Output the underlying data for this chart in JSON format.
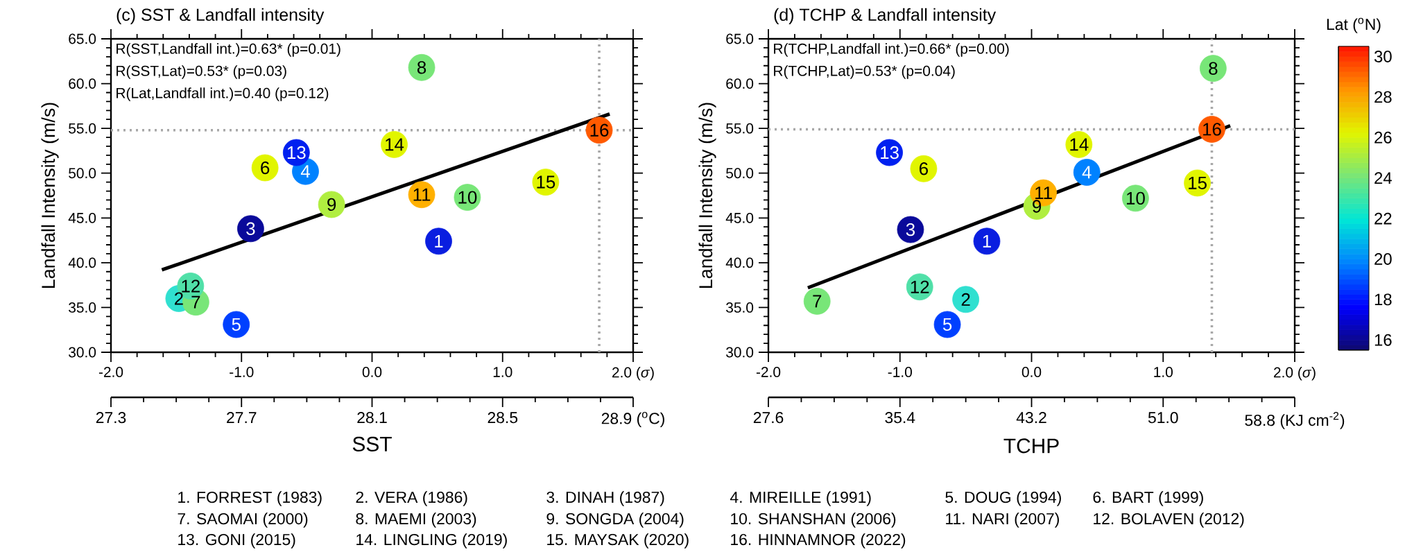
{
  "chart_data": [
    {
      "type": "scatter",
      "title": "(c) SST & Landfall intensity",
      "ylabel": "Landfall Intensity (m/s)",
      "x2label": "SST",
      "xlim": [
        -2,
        2
      ],
      "xticks": [
        {
          "value": -2,
          "label": "-2.0"
        },
        {
          "value": -1,
          "label": "-1.0"
        },
        {
          "value": 0,
          "label": "0.0"
        },
        {
          "value": 1,
          "label": "1.0"
        },
        {
          "value": 2,
          "label": "2.0 (*σ*)"
        }
      ],
      "ylim": [
        30,
        65
      ],
      "yticks": [
        {
          "value": 30,
          "label": "30.0"
        },
        {
          "value": 35,
          "label": "35.0"
        },
        {
          "value": 40,
          "label": "40.0"
        },
        {
          "value": 45,
          "label": "45.0"
        },
        {
          "value": 50,
          "label": "50.0"
        },
        {
          "value": 55,
          "label": "55.0"
        },
        {
          "value": 60,
          "label": "60.0"
        },
        {
          "value": 65,
          "label": "65.0"
        }
      ],
      "x2lim": [
        27.3,
        28.9
      ],
      "x2ticks": [
        27.3,
        27.7,
        28.1,
        28.5,
        {
          "value": 28.9,
          "label": "28.9 ($^{o}$C)"
        }
      ],
      "series": [
        {
          "type": "scatter",
          "marker": "circle",
          "x": [
            0.51,
            -1.48,
            -0.93,
            -0.51,
            -1.04,
            -0.82,
            -1.35,
            0.38,
            -0.31,
            0.73,
            0.38,
            -1.39,
            -0.58,
            0.17,
            1.33,
            1.74
          ],
          "values": [
            42.4,
            36.0,
            43.8,
            50.2,
            33.1,
            50.6,
            35.6,
            61.8,
            46.5,
            47.3,
            47.6,
            37.4,
            52.3,
            53.2,
            49.0,
            54.8
          ],
          "colors": [
            "#0a1ee0",
            "#30e0d0",
            "#0a0a9a",
            "#0082ff",
            "#0040ff",
            "#e1f500",
            "#78e678",
            "#78e678",
            "#b0ee40",
            "#78e678",
            "#ffb000",
            "#50e0a8",
            "#0020f0",
            "#e1f500",
            "#e1f500",
            "#ff5a00"
          ]
        },
        {
          "type": "line",
          "color": "#000000",
          "x": [
            -1.61,
            1.82
          ],
          "values": [
            39.2,
            56.6
          ]
        }
      ],
      "ref_lines": [
        {
          "axis": "y",
          "value": 54.8,
          "line_style": "dotted",
          "color": "#a8a8a8"
        },
        {
          "axis": "x",
          "value": 1.74,
          "line_style": "dotted",
          "color": "#a8a8a8"
        }
      ],
      "annotations": [
        "R(SST,Landfall int.)=0.63* (p=0.01)",
        "R(SST,Lat)=0.53* (p=0.03)",
        "R(Lat,Landfall int.)=0.40 (p=0.12)",
        {
          "text": "1",
          "x": 0.51,
          "y": 42.4
        },
        {
          "text": "2",
          "x": -1.48,
          "y": 36.0
        },
        {
          "text": "3",
          "x": -0.93,
          "y": 43.8
        },
        {
          "text": "4",
          "x": -0.51,
          "y": 50.2
        },
        {
          "text": "5",
          "x": -1.04,
          "y": 33.1
        },
        {
          "text": "6",
          "x": -0.82,
          "y": 50.6
        },
        {
          "text": "7",
          "x": -1.35,
          "y": 35.6
        },
        {
          "text": "8",
          "x": 0.38,
          "y": 61.8
        },
        {
          "text": "9",
          "x": -0.31,
          "y": 46.5
        },
        {
          "text": "10",
          "x": 0.73,
          "y": 47.3
        },
        {
          "text": "11",
          "x": 0.38,
          "y": 47.6
        },
        {
          "text": "12",
          "x": -1.39,
          "y": 37.4
        },
        {
          "text": "13",
          "x": -0.58,
          "y": 52.3
        },
        {
          "text": "14",
          "x": 0.17,
          "y": 53.2
        },
        {
          "text": "15",
          "x": 1.33,
          "y": 49.0
        },
        {
          "text": "16",
          "x": 1.74,
          "y": 54.8
        }
      ]
    },
    {
      "type": "scatter",
      "title": "(d) TCHP & Landfall intensity",
      "ylabel": "Landfall Intensity (m/s)",
      "x2label": "TCHP",
      "clabel": "Lat ($^{o}$N)",
      "xlim": [
        -2,
        2
      ],
      "xticks": [
        {
          "value": -2,
          "label": "-2.0"
        },
        {
          "value": -1,
          "label": "-1.0"
        },
        {
          "value": 0,
          "label": "0.0"
        },
        {
          "value": 1,
          "label": "1.0"
        },
        {
          "value": 2,
          "label": "2.0 (*σ*)"
        }
      ],
      "ylim": [
        30,
        65
      ],
      "yticks": [
        {
          "value": 30,
          "label": "30.0"
        },
        {
          "value": 35,
          "label": "35.0"
        },
        {
          "value": 40,
          "label": "40.0"
        },
        {
          "value": 45,
          "label": "45.0"
        },
        {
          "value": 50,
          "label": "50.0"
        },
        {
          "value": 55,
          "label": "55.0"
        },
        {
          "value": 60,
          "label": "60.0"
        },
        {
          "value": 65,
          "label": "65.0"
        }
      ],
      "x2lim": [
        27.6,
        58.8
      ],
      "x2ticks": [
        27.6,
        35.4,
        43.2,
        {
          "value": 51.0,
          "label": "51.0"
        },
        {
          "value": 58.8,
          "label": "58.8 (KJ cm$^{-2}$)"
        }
      ],
      "clim": [
        15.5,
        30.5
      ],
      "cticks": [
        16,
        18,
        20,
        22,
        24,
        26,
        28,
        30
      ],
      "series": [
        {
          "type": "scatter",
          "marker": "circle",
          "x": [
            -0.34,
            -0.5,
            -0.92,
            0.42,
            -0.64,
            -0.82,
            -1.63,
            1.38,
            0.04,
            0.79,
            0.09,
            -0.85,
            -1.08,
            0.36,
            1.26,
            1.37
          ],
          "values": [
            42.4,
            35.9,
            43.7,
            50.1,
            33.1,
            50.5,
            35.7,
            61.7,
            46.3,
            47.2,
            47.8,
            37.3,
            52.3,
            53.2,
            48.9,
            54.9
          ],
          "colors": [
            "#0a1ee0",
            "#30e0d0",
            "#0a0a9a",
            "#0082ff",
            "#0040ff",
            "#e1f500",
            "#78e678",
            "#78e678",
            "#b0ee40",
            "#78e678",
            "#ffb000",
            "#50e0a8",
            "#0020f0",
            "#e1f500",
            "#e1f500",
            "#ff5a00"
          ]
        },
        {
          "type": "line",
          "color": "#000000",
          "x": [
            -1.7,
            1.51
          ],
          "values": [
            37.2,
            55.3
          ]
        }
      ],
      "ref_lines": [
        {
          "axis": "y",
          "value": 54.9,
          "line_style": "dotted",
          "color": "#a8a8a8"
        },
        {
          "axis": "x",
          "value": 1.37,
          "line_style": "dotted",
          "color": "#a8a8a8"
        }
      ],
      "annotations": [
        "R(TCHP,Landfall int.)=0.66* (p=0.00)",
        "R(TCHP,Lat)=0.53* (p=0.04)",
        {
          "text": "1",
          "x": -0.34,
          "y": 42.4
        },
        {
          "text": "2",
          "x": -0.5,
          "y": 35.9
        },
        {
          "text": "3",
          "x": -0.92,
          "y": 43.7
        },
        {
          "text": "4",
          "x": 0.42,
          "y": 50.1
        },
        {
          "text": "5",
          "x": -0.64,
          "y": 33.1
        },
        {
          "text": "6",
          "x": -0.82,
          "y": 50.5
        },
        {
          "text": "7",
          "x": -1.63,
          "y": 35.7
        },
        {
          "text": "8",
          "x": 1.38,
          "y": 61.7
        },
        {
          "text": "9",
          "x": 0.04,
          "y": 46.3
        },
        {
          "text": "10",
          "x": 0.79,
          "y": 47.2
        },
        {
          "text": "11",
          "x": 0.09,
          "y": 47.8
        },
        {
          "text": "12",
          "x": -0.85,
          "y": 37.3
        },
        {
          "text": "13",
          "x": -1.08,
          "y": 52.3
        },
        {
          "text": "14",
          "x": 0.36,
          "y": 53.2
        },
        {
          "text": "15",
          "x": 1.26,
          "y": 48.9
        },
        {
          "text": "16",
          "x": 1.37,
          "y": 54.9
        }
      ]
    },
    {
      "type": "other",
      "annotations": [
        "1. FORREST (1983)",
        "2. VERA (1986)",
        "3. DINAH (1987)",
        "4. MIREILLE (1991)",
        "5. DOUG (1994)",
        "6. BART (1999)",
        "7. SAOMAI (2000)",
        "8. MAEMI (2003)",
        "9. SONGDA (2004)",
        "10. SHANSHAN (2006)",
        "11. NARI (2007)",
        "12. BOLAVEN (2012)",
        "13. GONI (2015)",
        "14. LINGLING (2019)",
        "15. MAYSAK (2020)",
        "16. HINNAMNOR (2022)"
      ]
    }
  ]
}
